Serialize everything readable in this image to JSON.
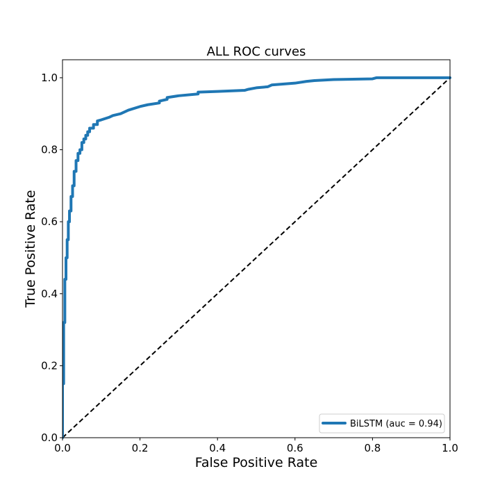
{
  "chart_data": {
    "type": "line",
    "title": "ALL ROC curves",
    "xlabel": "False Positive Rate",
    "ylabel": "True Positive Rate",
    "xlim": [
      0.0,
      1.0
    ],
    "ylim": [
      0.0,
      1.05
    ],
    "grid": false,
    "legend_position": "lower-right",
    "x_ticks": [
      0.0,
      0.2,
      0.4,
      0.6,
      0.8,
      1.0
    ],
    "x_tick_labels": [
      "0.0",
      "0.2",
      "0.4",
      "0.6",
      "0.8",
      "1.0"
    ],
    "y_ticks": [
      0.0,
      0.2,
      0.4,
      0.6,
      0.8,
      1.0
    ],
    "y_tick_labels": [
      "0.0",
      "0.2",
      "0.4",
      "0.6",
      "0.8",
      "1.0"
    ],
    "series": [
      {
        "name": "BiLSTM (auc = 0.94)",
        "color": "#1f77b4",
        "style": "solid",
        "x": [
          0.0,
          0.0,
          0.003,
          0.003,
          0.006,
          0.006,
          0.009,
          0.009,
          0.012,
          0.012,
          0.015,
          0.015,
          0.018,
          0.018,
          0.022,
          0.022,
          0.026,
          0.026,
          0.03,
          0.03,
          0.035,
          0.035,
          0.04,
          0.04,
          0.045,
          0.045,
          0.05,
          0.05,
          0.055,
          0.055,
          0.06,
          0.06,
          0.065,
          0.065,
          0.07,
          0.07,
          0.08,
          0.08,
          0.09,
          0.09,
          0.1,
          0.12,
          0.13,
          0.15,
          0.17,
          0.2,
          0.22,
          0.25,
          0.25,
          0.27,
          0.27,
          0.3,
          0.35,
          0.35,
          0.4,
          0.47,
          0.48,
          0.5,
          0.53,
          0.54,
          0.6,
          0.63,
          0.65,
          0.7,
          0.8,
          0.81,
          1.0
        ],
        "y": [
          0.0,
          0.15,
          0.15,
          0.32,
          0.32,
          0.44,
          0.44,
          0.5,
          0.5,
          0.55,
          0.55,
          0.6,
          0.6,
          0.63,
          0.63,
          0.67,
          0.67,
          0.7,
          0.7,
          0.74,
          0.74,
          0.77,
          0.77,
          0.79,
          0.79,
          0.8,
          0.8,
          0.82,
          0.82,
          0.83,
          0.83,
          0.84,
          0.84,
          0.85,
          0.85,
          0.86,
          0.86,
          0.87,
          0.87,
          0.88,
          0.883,
          0.89,
          0.895,
          0.9,
          0.91,
          0.92,
          0.925,
          0.93,
          0.935,
          0.94,
          0.945,
          0.95,
          0.955,
          0.96,
          0.962,
          0.965,
          0.968,
          0.972,
          0.975,
          0.98,
          0.985,
          0.99,
          0.992,
          0.995,
          0.997,
          1.0,
          1.0
        ]
      },
      {
        "name": "chance",
        "color": "#000000",
        "style": "dashed",
        "x": [
          0.0,
          1.0
        ],
        "y": [
          0.0,
          1.0
        ]
      }
    ]
  }
}
